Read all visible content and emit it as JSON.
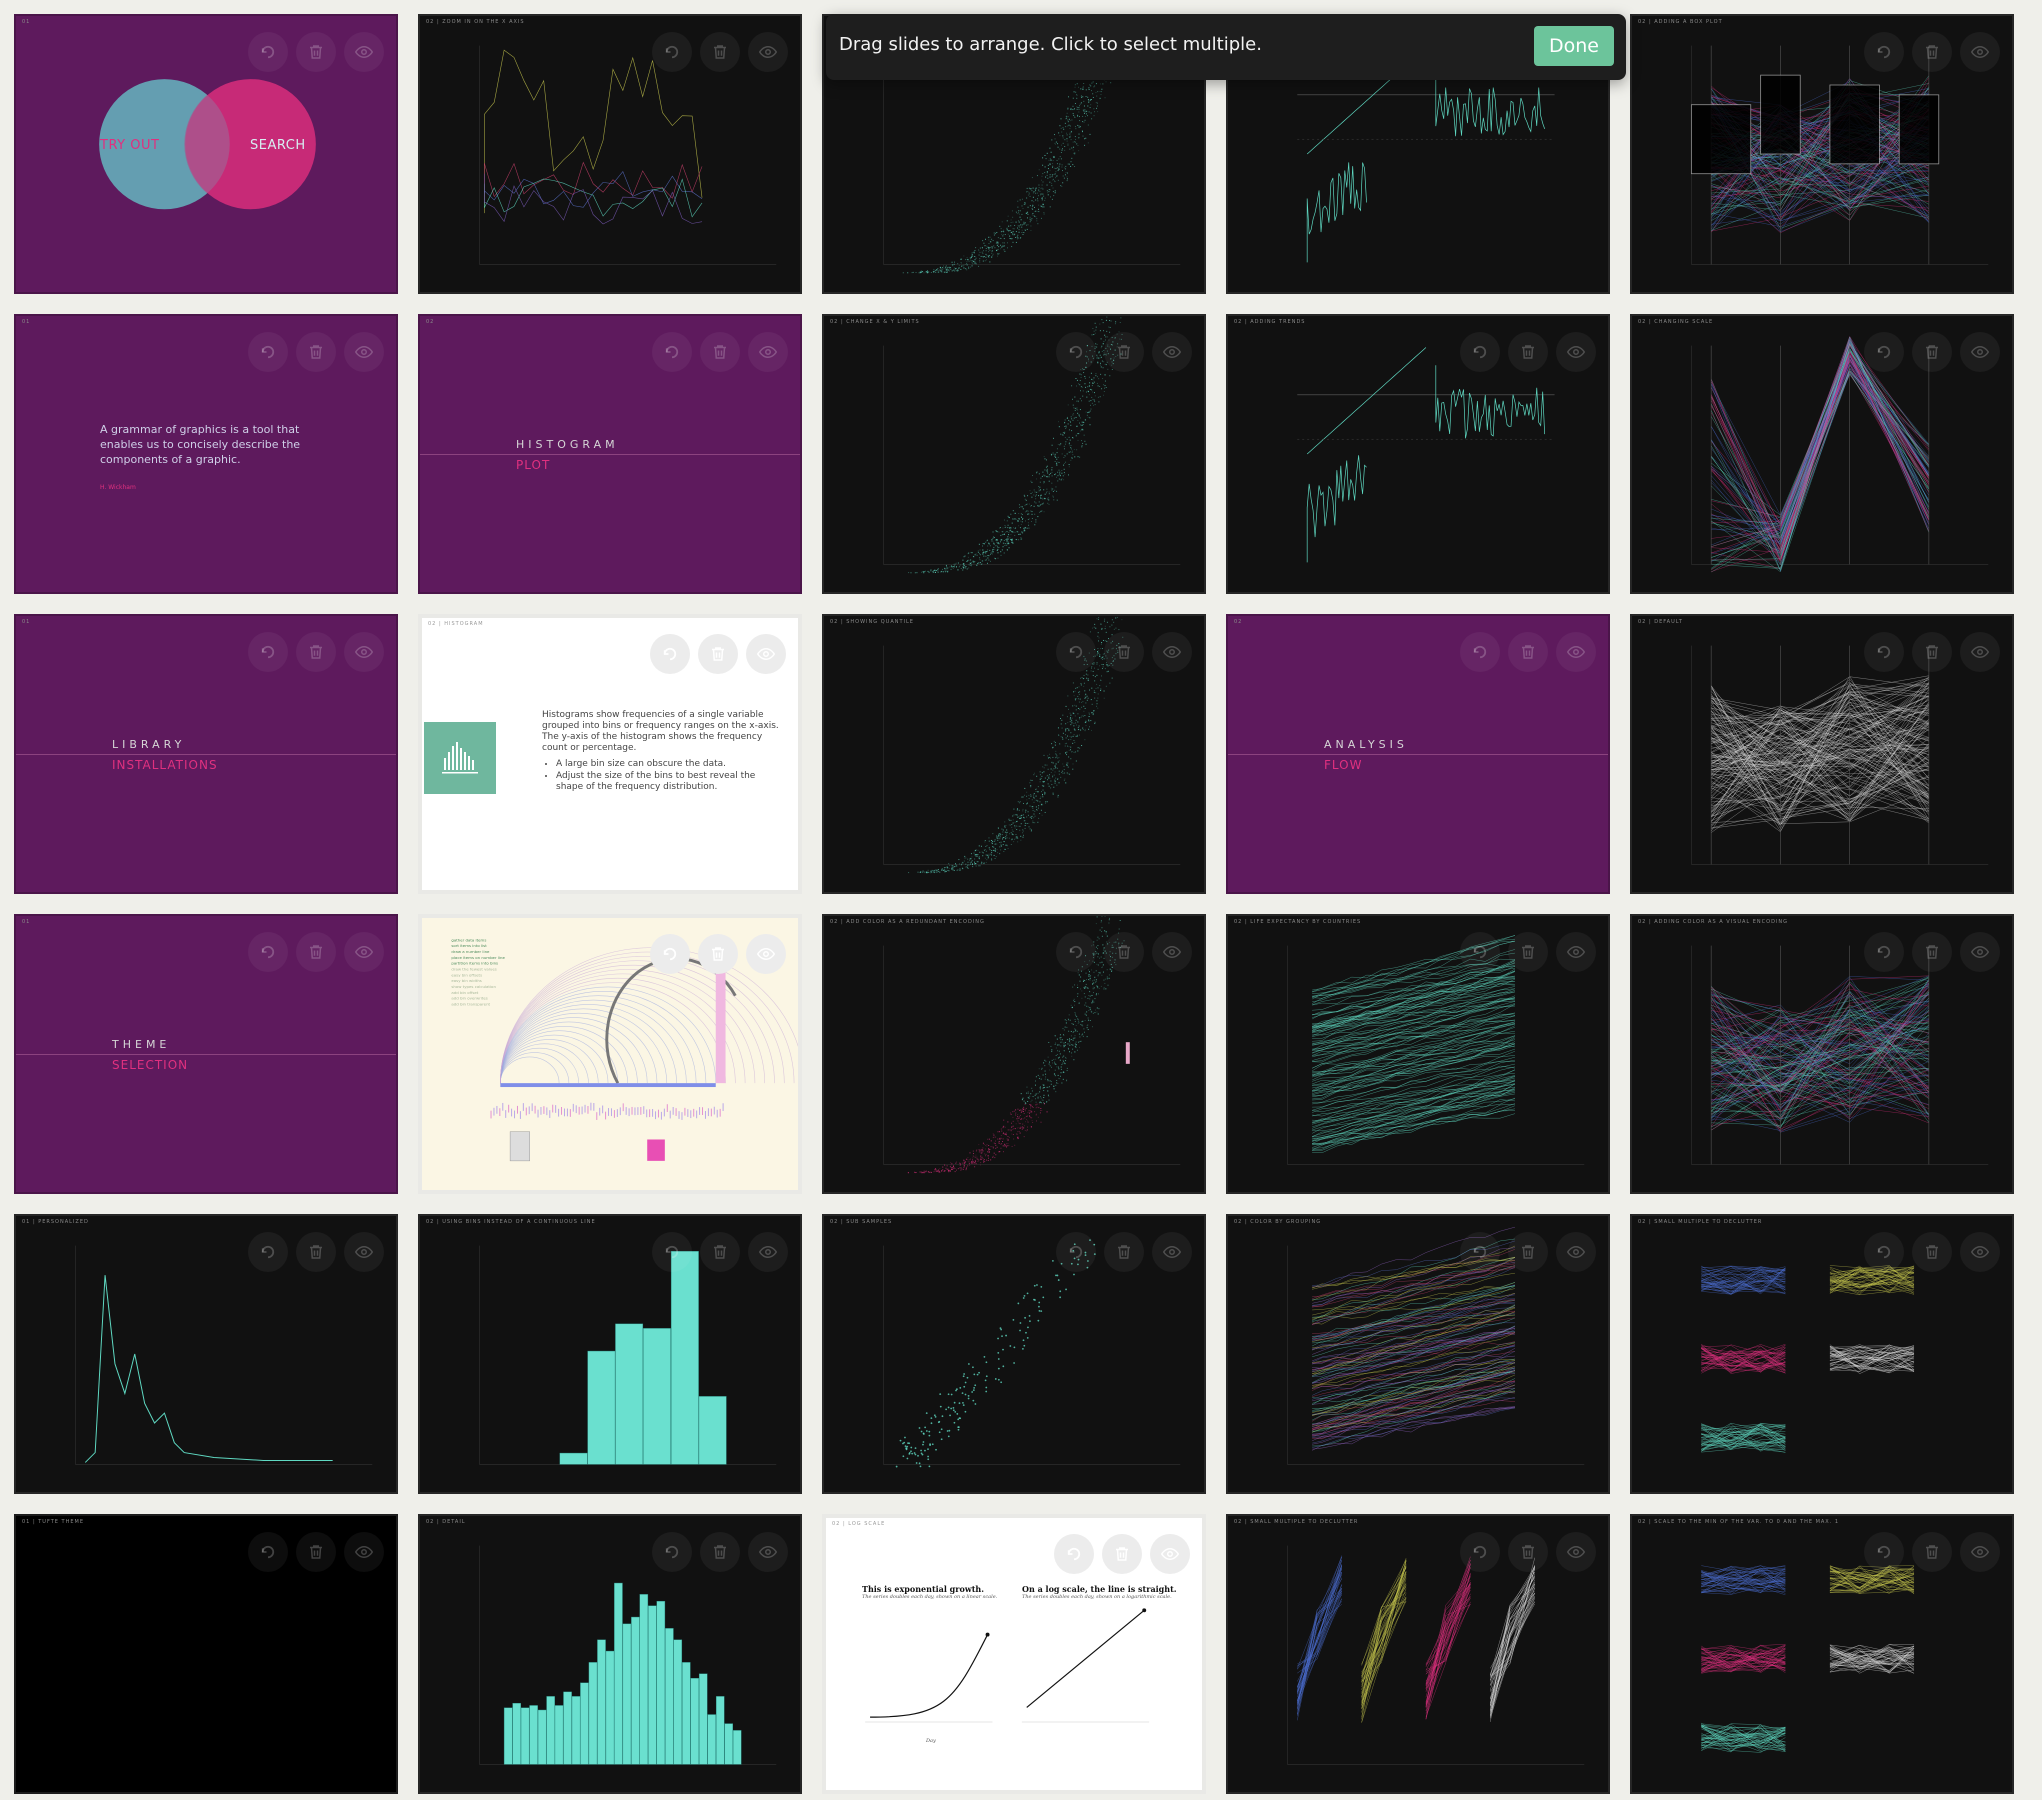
{
  "toolbar": {
    "instruction": "Drag slides to arrange. Click to select multiple.",
    "done_label": "Done"
  },
  "slides": [
    {
      "id": "s01",
      "title": "01",
      "kind": "venn",
      "left_label": "TRY OUT",
      "right_label": "SEARCH"
    },
    {
      "id": "s02",
      "title": "02 | ZOOM IN ON THE X AXIS",
      "kind": "line-multi"
    },
    {
      "id": "s03",
      "title": "",
      "kind": "scatter-teal"
    },
    {
      "id": "s04",
      "title": "",
      "kind": "trend"
    },
    {
      "id": "s05",
      "title": "02 | ADDING A BOX PLOT",
      "kind": "parallel-box"
    },
    {
      "id": "s06",
      "title": "01",
      "kind": "quote",
      "quote": "A grammar of graphics is a tool that enables us to concisely describe the components of a graphic.",
      "author": "H. Wickham"
    },
    {
      "id": "s07",
      "title": "02",
      "kind": "section",
      "top": "HISTOGRAM",
      "bottom": "PLOT"
    },
    {
      "id": "s08",
      "title": "02 | CHANGE X & Y LIMITS",
      "kind": "scatter-teal"
    },
    {
      "id": "s09",
      "title": "02 | ADDING TRENDS",
      "kind": "trend"
    },
    {
      "id": "s10",
      "title": "02 | CHANGING SCALE",
      "kind": "parallel-zig"
    },
    {
      "id": "s11",
      "title": "01",
      "kind": "section",
      "top": "LIBRARY",
      "bottom": "INSTALLATIONS"
    },
    {
      "id": "s12",
      "title": "02 | HISTOGRAM",
      "kind": "hist-text",
      "paragraph": "Histograms show frequencies of a single variable grouped into bins or frequency ranges on the x-axis. The y-axis of the histogram shows the frequency count or percentage.",
      "bullets": [
        "A large bin size can obscure the data.",
        "Adjust the size of the bins to best reveal the shape of the frequency distribution."
      ]
    },
    {
      "id": "s13",
      "title": "02 | SHOWING QUANTILE",
      "kind": "scatter-teal"
    },
    {
      "id": "s14",
      "title": "02",
      "kind": "section",
      "top": "ANALYSIS",
      "bottom": "FLOW"
    },
    {
      "id": "s15",
      "title": "02 | DEFAULT",
      "kind": "parallel-white"
    },
    {
      "id": "s16",
      "title": "01",
      "kind": "section",
      "top": "THEME",
      "bottom": "SELECTION"
    },
    {
      "id": "s17",
      "title": "02 | GUIDELINES FOR HISTOGRAMS",
      "kind": "guidelines"
    },
    {
      "id": "s18",
      "title": "02 | ADD COLOR AS A REDUNDANT ENCODING",
      "kind": "scatter-pink"
    },
    {
      "id": "s19",
      "title": "02 | LIFE EXPECTANCY BY COUNTRIES",
      "kind": "lines-teal"
    },
    {
      "id": "s20",
      "title": "02 | ADDING COLOR AS A VISUAL ENCODING",
      "kind": "parallel-color"
    },
    {
      "id": "s21",
      "title": "01 | PERSONALIZED",
      "kind": "density"
    },
    {
      "id": "s22",
      "title": "02 | USING BINS INSTEAD OF A CONTINUOUS LINE",
      "kind": "hist-wide"
    },
    {
      "id": "s23",
      "title": "02 | SUB SAMPLES",
      "kind": "sub-scatter"
    },
    {
      "id": "s24",
      "title": "02 | COLOR BY GROUPING",
      "kind": "lines-multi"
    },
    {
      "id": "s25",
      "title": "02 | SMALL MULTIPLE TO DECLUTTER",
      "kind": "small-multiples"
    },
    {
      "id": "s26",
      "title": "01 | TUFTE THEME",
      "kind": "black"
    },
    {
      "id": "s27",
      "title": "02 | DETAIL",
      "kind": "hist-fine"
    },
    {
      "id": "s28",
      "title": "02 | LOG SCALE",
      "kind": "logscale",
      "left_title": "This is exponential growth.",
      "left_sub": "The series doubles each day, shown on a linear scale.",
      "right_title": "On a log scale, the line is straight.",
      "right_sub": "The series doubles each day, shown on a logarithmic scale.",
      "xlabel": "Day"
    },
    {
      "id": "s29",
      "title": "02 | SMALL MULTIPLE TO DECLUTTER",
      "kind": "small-lines"
    },
    {
      "id": "s30",
      "title": "02 | SCALE TO THE MIN OF THE VAR. TO 0 AND THE MAX. 1",
      "kind": "small-multiples"
    }
  ],
  "colors": {
    "purple": "#5e1a5d",
    "teal": "#5fd9c2",
    "pink": "#e0307f",
    "done": "#6cc49b"
  }
}
